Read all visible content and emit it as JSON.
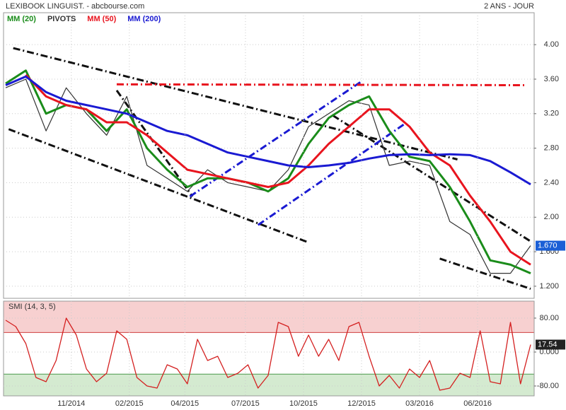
{
  "chart_data": [
    {
      "type": "line",
      "title": "LEXIBOOK LINGUIST. - abcbourse.com",
      "subtitle": "2 ANS - JOUR",
      "x": [
        0,
        4,
        8,
        12,
        16,
        20,
        24,
        28,
        32,
        36,
        40,
        44,
        48,
        52,
        56,
        60,
        64,
        68,
        72,
        76,
        80,
        84,
        88,
        92,
        96,
        100,
        104
      ],
      "xlim": [
        0,
        104
      ],
      "values": [
        3.5,
        3.6,
        3.0,
        3.5,
        3.2,
        2.95,
        3.4,
        2.6,
        2.45,
        2.3,
        2.55,
        2.4,
        2.35,
        2.3,
        2.55,
        3.05,
        3.2,
        3.35,
        3.3,
        2.6,
        2.65,
        2.6,
        1.95,
        1.8,
        1.35,
        1.35,
        1.67
      ],
      "color": "#333333",
      "series": [
        {
          "name": "MM (20)",
          "color": "#1a8c1a",
          "values": [
            3.55,
            3.7,
            3.2,
            3.3,
            3.25,
            3.0,
            3.25,
            2.8,
            2.55,
            2.35,
            2.45,
            2.45,
            2.4,
            2.3,
            2.45,
            2.85,
            3.15,
            3.3,
            3.4,
            3.0,
            2.7,
            2.65,
            2.35,
            1.95,
            1.5,
            1.45,
            1.35
          ]
        },
        {
          "name": "MM (50)",
          "color": "#e8141e",
          "values": [
            null,
            3.65,
            3.4,
            3.3,
            3.25,
            3.1,
            3.1,
            2.95,
            2.75,
            2.55,
            2.5,
            2.45,
            2.4,
            2.35,
            2.4,
            2.6,
            2.85,
            3.05,
            3.25,
            3.25,
            3.05,
            2.75,
            2.6,
            2.25,
            1.95,
            1.6,
            1.45
          ]
        },
        {
          "name": "MM (200)",
          "color": "#1a1ad2",
          "values": [
            3.53,
            3.63,
            3.45,
            3.35,
            3.3,
            3.25,
            3.2,
            3.1,
            3.0,
            2.95,
            2.85,
            2.75,
            2.7,
            2.65,
            2.6,
            2.58,
            2.6,
            2.63,
            2.68,
            2.72,
            2.73,
            2.72,
            2.73,
            2.72,
            2.65,
            2.52,
            2.38
          ]
        }
      ],
      "pivots": {
        "name": "PIVOTS",
        "lines": [
          {
            "color": "#111111",
            "x": [
              1.5,
              89.5
            ],
            "y": [
              3.96,
              2.67
            ]
          },
          {
            "color": "#111111",
            "x": [
              0.6,
              59.9
            ],
            "y": [
              3.02,
              1.71
            ]
          },
          {
            "color": "#111111",
            "x": [
              64.8,
              104
            ],
            "y": [
              3.18,
              1.72
            ]
          },
          {
            "color": "#111111",
            "x": [
              86,
              104
            ],
            "y": [
              1.52,
              1.17
            ]
          },
          {
            "color": "#111111",
            "x": [
              22,
              37
            ],
            "y": [
              3.47,
              2.24
            ]
          },
          {
            "color": "#1a1ad2",
            "x": [
              36.5,
              70.4
            ],
            "y": [
              2.24,
              3.57
            ]
          },
          {
            "color": "#1a1ad2",
            "x": [
              50,
              79
            ],
            "y": [
              1.91,
              3.08
            ]
          },
          {
            "color": "#e8141e",
            "x": [
              22,
              103
            ],
            "y": [
              3.54,
              3.53
            ]
          }
        ]
      },
      "last_price": {
        "value": 1.67,
        "label": "1.670",
        "color": "#1a5fd6"
      },
      "ylim": [
        1.06,
        4.37
      ],
      "yticks": [
        {
          "value": 4,
          "label": "4.00"
        },
        {
          "value": 3.6,
          "label": "3.60"
        },
        {
          "value": 3.2,
          "label": "3.20"
        },
        {
          "value": 2.8,
          "label": "2.80"
        },
        {
          "value": 2.4,
          "label": "2.40"
        },
        {
          "value": 2,
          "label": "2.00"
        },
        {
          "value": 1.6,
          "label": "1.600"
        },
        {
          "value": 1.2,
          "label": "1.200"
        }
      ],
      "grid": true
    },
    {
      "type": "line",
      "title": "SMI (14, 3, 5)",
      "x": [
        0,
        2,
        4,
        6,
        8,
        10,
        12,
        14,
        16,
        18,
        20,
        22,
        24,
        26,
        28,
        30,
        32,
        34,
        36,
        38,
        40,
        42,
        44,
        46,
        48,
        50,
        52,
        54,
        56,
        58,
        60,
        62,
        64,
        66,
        68,
        70,
        72,
        74,
        76,
        78,
        80,
        82,
        84,
        86,
        88,
        90,
        92,
        94,
        96,
        98,
        100,
        102,
        104
      ],
      "xlim": [
        0,
        104
      ],
      "values": [
        75,
        60,
        20,
        -60,
        -70,
        -20,
        80,
        40,
        -40,
        -70,
        -50,
        50,
        30,
        -60,
        -80,
        -85,
        -30,
        -40,
        -75,
        30,
        -20,
        -10,
        -60,
        -50,
        -30,
        -85,
        -55,
        70,
        60,
        -10,
        40,
        -10,
        30,
        -20,
        60,
        70,
        -10,
        -80,
        -55,
        -85,
        -40,
        -60,
        -20,
        -90,
        -85,
        -50,
        -60,
        50,
        -70,
        -75,
        70,
        -75,
        17.54
      ],
      "color": "#d42020",
      "last_value": {
        "value": 17.54,
        "label": "17.54",
        "color": "#222222"
      },
      "zones": {
        "upper": 46,
        "lower": -52,
        "upper_color": "#f7d0d0",
        "lower_color": "#d4ead0"
      },
      "ylim": [
        -103.3,
        120
      ],
      "yticks": [
        {
          "value": 80,
          "label": "80.00"
        },
        {
          "value": 0,
          "label": "0.000"
        },
        {
          "value": -80,
          "label": "-80.00"
        }
      ],
      "xticks": [
        {
          "value": 13,
          "label": "11/2014"
        },
        {
          "value": 24.5,
          "label": "02/2015"
        },
        {
          "value": 35.5,
          "label": "04/2015"
        },
        {
          "value": 47.5,
          "label": "07/2015"
        },
        {
          "value": 59,
          "label": "10/2015"
        },
        {
          "value": 70.5,
          "label": "12/2015"
        },
        {
          "value": 82,
          "label": "03/2016"
        },
        {
          "value": 93.5,
          "label": "06/2016"
        }
      ],
      "grid": true
    }
  ]
}
